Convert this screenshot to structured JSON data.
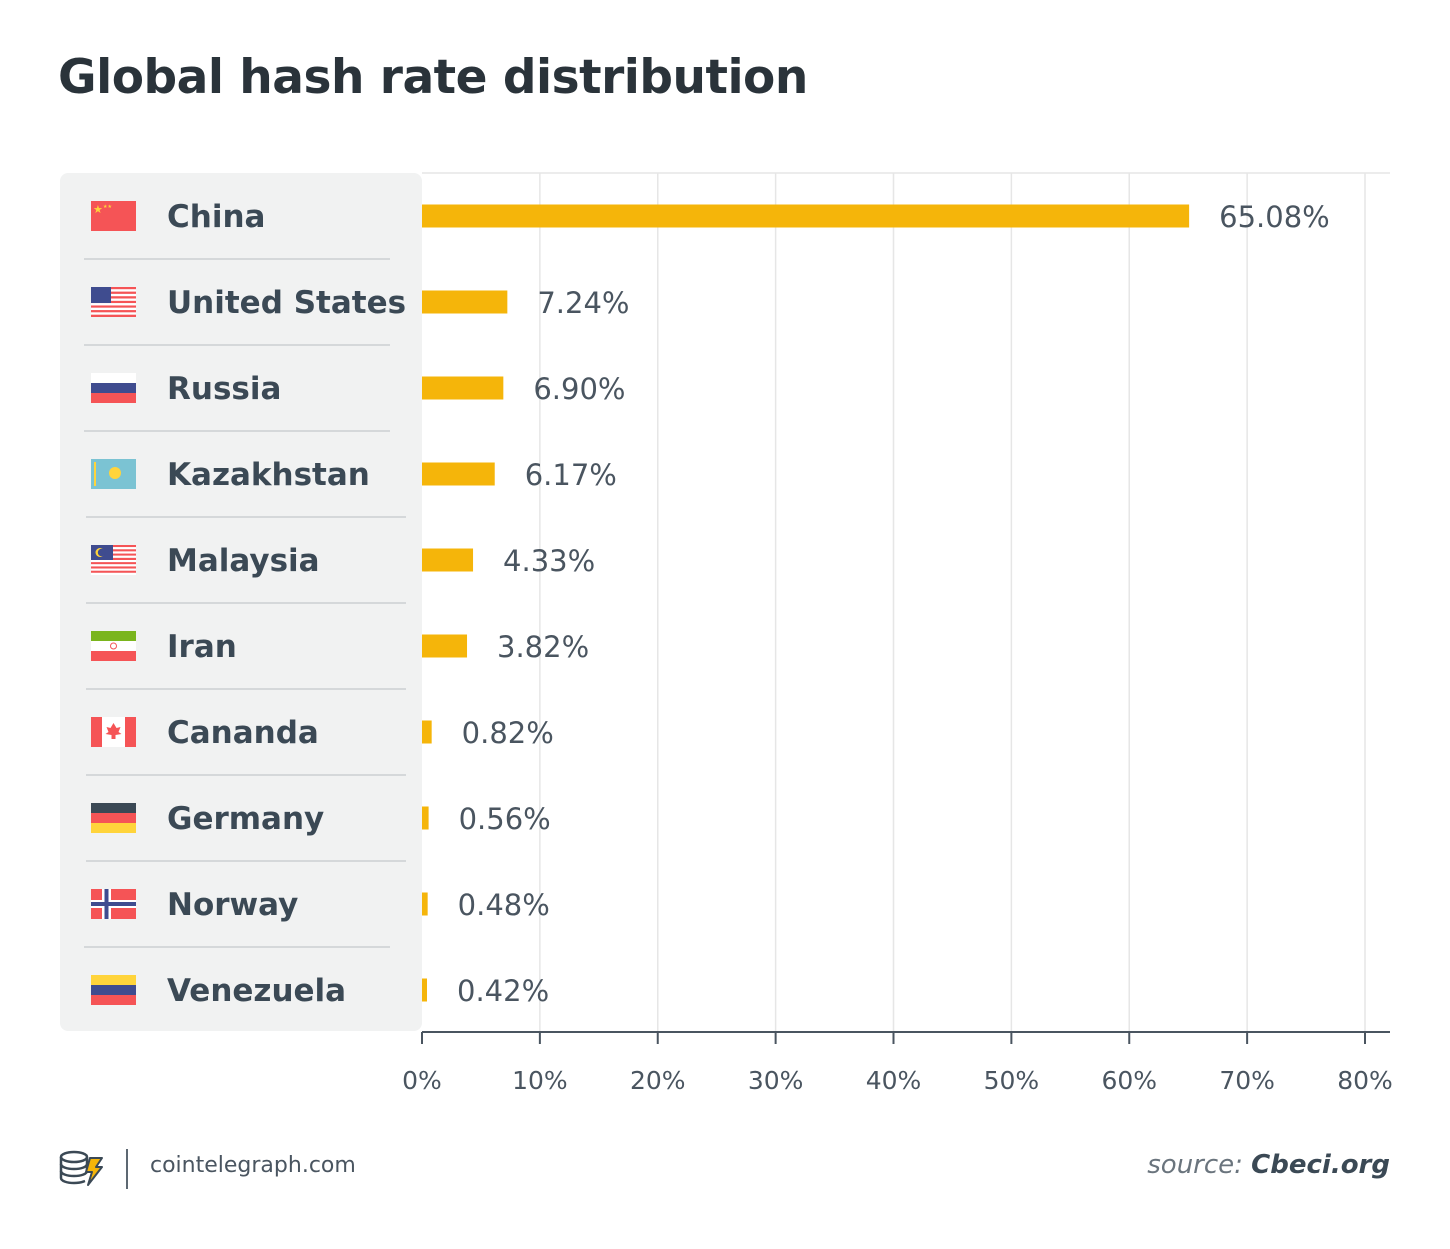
{
  "chart_data": {
    "type": "bar",
    "orientation": "horizontal",
    "title": "Global hash rate distribution",
    "categories": [
      "China",
      "United States",
      "Russia",
      "Kazakhstan",
      "Malaysia",
      "Iran",
      "Cananda",
      "Germany",
      "Norway",
      "Venezuela"
    ],
    "values": [
      65.08,
      7.24,
      6.9,
      6.17,
      4.33,
      3.82,
      0.82,
      0.56,
      0.48,
      0.42
    ],
    "value_labels": [
      "65.08%",
      "7.24%",
      "6.90%",
      "6.17%",
      "4.33%",
      "3.82%",
      "0.82%",
      "0.56%",
      "0.48%",
      "0.42%"
    ],
    "flags": [
      "flag-china-icon",
      "flag-usa-icon",
      "flag-russia-icon",
      "flag-kazakhstan-icon",
      "flag-malaysia-icon",
      "flag-iran-icon",
      "flag-canada-icon",
      "flag-germany-icon",
      "flag-norway-icon",
      "flag-venezuela-icon"
    ],
    "xlim": [
      0,
      80
    ],
    "ticks": [
      "0%",
      "10%",
      "20%",
      "30%",
      "40%",
      "50%",
      "60%",
      "70%",
      "80%"
    ],
    "bar_color": "#f5b50a",
    "grid": true
  },
  "footer": {
    "site": "cointelegraph.com",
    "source_prefix": "source: ",
    "source_name": "Cbeci.org"
  }
}
